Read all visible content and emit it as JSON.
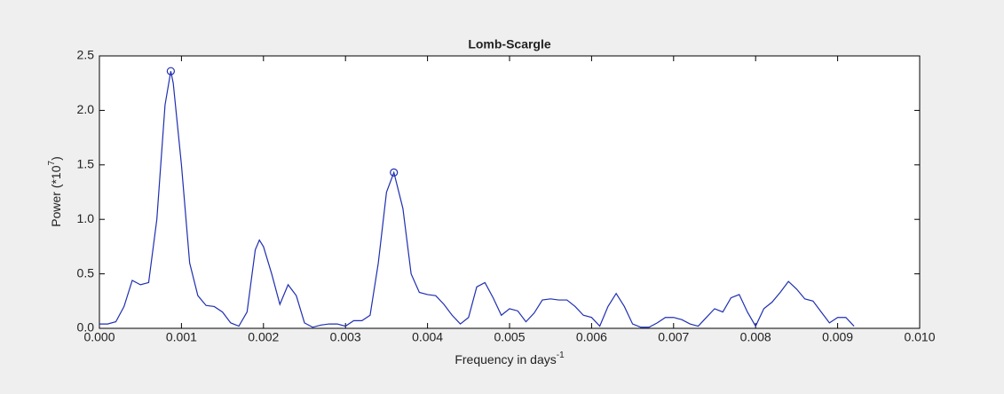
{
  "chart_data": {
    "type": "line",
    "title": "Lomb-Scargle",
    "xlabel": {
      "text": "Frequency in days",
      "sup": "-1"
    },
    "ylabel": {
      "text": "Power (*10",
      "sup": "7",
      "end": ")"
    },
    "xlim": [
      0,
      0.01
    ],
    "xticks": [
      {
        "value": 0,
        "label": "0.000"
      },
      {
        "value": 0.001,
        "label": "0.001"
      },
      {
        "value": 0.002,
        "label": "0.002"
      },
      {
        "value": 0.003,
        "label": "0.003"
      },
      {
        "value": 0.004,
        "label": "0.004"
      },
      {
        "value": 0.005,
        "label": "0.005"
      },
      {
        "value": 0.006,
        "label": "0.006"
      },
      {
        "value": 0.007,
        "label": "0.007"
      },
      {
        "value": 0.008,
        "label": "0.008"
      },
      {
        "value": 0.009,
        "label": "0.009"
      },
      {
        "value": 0.01,
        "label": "0.010"
      }
    ],
    "ylim": [
      0,
      2.5
    ],
    "yticks": [
      {
        "value": 0,
        "label": "0.0"
      },
      0.5,
      {
        "value": 1,
        "label": "1.0"
      },
      1.5,
      {
        "value": 2,
        "label": "2.0"
      },
      2.5
    ],
    "series": [
      {
        "color": "#1f2fb0",
        "x": [
          0,
          0.0001,
          0.0002,
          0.0003,
          0.0004,
          0.0005,
          0.0006,
          0.0007,
          0.0008,
          0.00087,
          0.0009,
          0.001,
          0.0011,
          0.0012,
          0.0013,
          0.0014,
          0.0015,
          0.0016,
          0.0017,
          0.0018,
          0.0019,
          0.00195,
          0.002,
          0.0021,
          0.0022,
          0.0023,
          0.0024,
          0.0025,
          0.0026,
          0.0027,
          0.0028,
          0.0029,
          0.003,
          0.0031,
          0.0032,
          0.0033,
          0.0034,
          0.0035,
          0.00359,
          0.0037,
          0.0038,
          0.0039,
          0.004,
          0.0041,
          0.0042,
          0.0043,
          0.0044,
          0.0045,
          0.0046,
          0.0047,
          0.0048,
          0.0049,
          0.005,
          0.0051,
          0.0052,
          0.0053,
          0.0054,
          0.0055,
          0.0056,
          0.0057,
          0.0058,
          0.0059,
          0.006,
          0.0061,
          0.0062,
          0.0063,
          0.0064,
          0.0065,
          0.0066,
          0.0067,
          0.0068,
          0.0069,
          0.007,
          0.0071,
          0.0072,
          0.0073,
          0.0074,
          0.0075,
          0.0076,
          0.0077,
          0.0078,
          0.0079,
          0.008,
          0.0081,
          0.0082,
          0.0083,
          0.0084,
          0.0085,
          0.0086,
          0.0087,
          0.0088,
          0.0089,
          0.009,
          0.0091,
          0.0092
        ],
        "values": [
          0.04,
          0.04,
          0.06,
          0.2,
          0.44,
          0.4,
          0.42,
          1.0,
          2.05,
          2.36,
          2.25,
          1.5,
          0.6,
          0.3,
          0.21,
          0.2,
          0.15,
          0.05,
          0.02,
          0.15,
          0.72,
          0.81,
          0.75,
          0.5,
          0.22,
          0.4,
          0.3,
          0.05,
          0.01,
          0.03,
          0.04,
          0.04,
          0.02,
          0.07,
          0.07,
          0.12,
          0.6,
          1.25,
          1.43,
          1.1,
          0.5,
          0.33,
          0.31,
          0.3,
          0.22,
          0.12,
          0.04,
          0.1,
          0.38,
          0.42,
          0.28,
          0.12,
          0.18,
          0.16,
          0.06,
          0.14,
          0.26,
          0.27,
          0.26,
          0.26,
          0.2,
          0.12,
          0.1,
          0.02,
          0.2,
          0.32,
          0.2,
          0.04,
          0.01,
          0.01,
          0.05,
          0.1,
          0.1,
          0.08,
          0.04,
          0.02,
          0.1,
          0.18,
          0.15,
          0.28,
          0.31,
          0.15,
          0.02,
          0.18,
          0.24,
          0.33,
          0.43,
          0.36,
          0.27,
          0.25,
          0.15,
          0.05,
          0.1,
          0.1,
          0.02
        ]
      }
    ],
    "peaks": {
      "color": "#1f2fb0",
      "x": [
        0.00087,
        0.00359
      ],
      "values": [
        2.36,
        1.43
      ]
    }
  }
}
